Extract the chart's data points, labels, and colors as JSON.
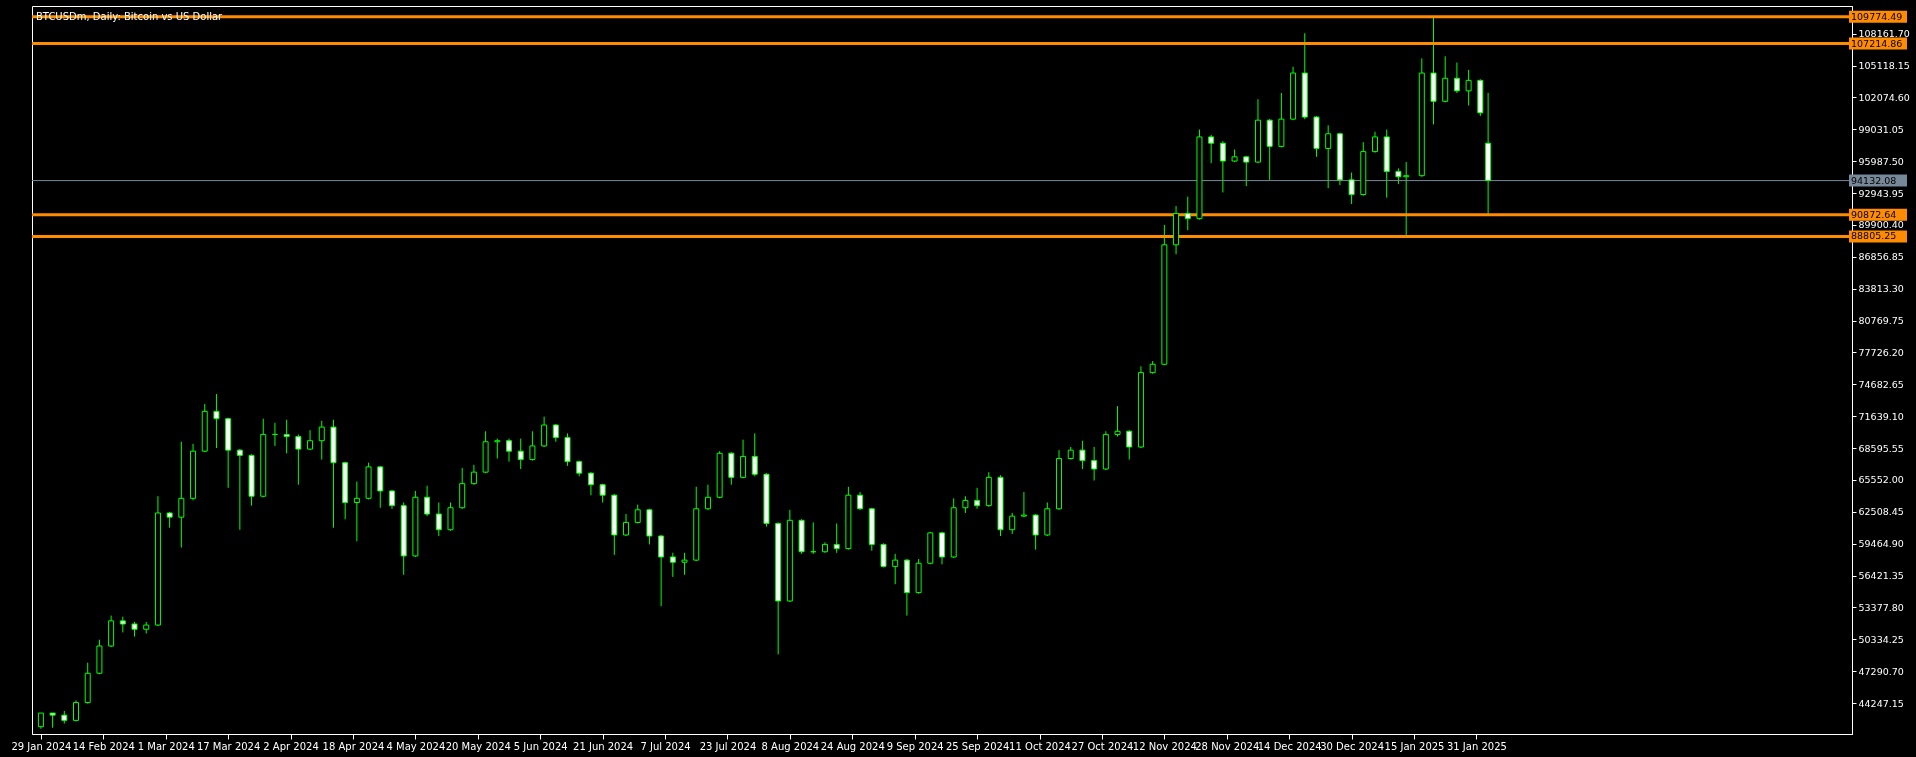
{
  "chart_data": {
    "type": "candlestick",
    "title": "BTCUSDm, Daily:  Bitcoin vs US Dollar",
    "xlim": [
      "2024-01-28",
      "2025-05-06"
    ],
    "xticks": [
      {
        "value": "2024-01-29",
        "label": "29 Jan 2024"
      },
      {
        "value": "2024-02-14",
        "label": "14 Feb 2024"
      },
      {
        "value": "2024-03-01",
        "label": "1 Mar 2024"
      },
      {
        "value": "2024-03-17",
        "label": "17 Mar 2024"
      },
      {
        "value": "2024-04-02",
        "label": "2 Apr 2024"
      },
      {
        "value": "2024-04-18",
        "label": "18 Apr 2024"
      },
      {
        "value": "2024-05-04",
        "label": "4 May 2024"
      },
      {
        "value": "2024-05-20",
        "label": "20 May 2024"
      },
      {
        "value": "2024-06-05",
        "label": "5 Jun 2024"
      },
      {
        "value": "2024-06-21",
        "label": "21 Jun 2024"
      },
      {
        "value": "2024-07-07",
        "label": "7 Jul 2024"
      },
      {
        "value": "2024-07-23",
        "label": "23 Jul 2024"
      },
      {
        "value": "2024-08-08",
        "label": "8 Aug 2024"
      },
      {
        "value": "2024-08-24",
        "label": "24 Aug 2024"
      },
      {
        "value": "2024-09-09",
        "label": "9 Sep 2024"
      },
      {
        "value": "2024-09-25",
        "label": "25 Sep 2024"
      },
      {
        "value": "2024-10-11",
        "label": "11 Oct 2024"
      },
      {
        "value": "2024-10-27",
        "label": "27 Oct 2024"
      },
      {
        "value": "2024-11-12",
        "label": "12 Nov 2024"
      },
      {
        "value": "2024-11-28",
        "label": "28 Nov 2024"
      },
      {
        "value": "2024-12-14",
        "label": "14 Dec 2024"
      },
      {
        "value": "2024-12-30",
        "label": "30 Dec 2024"
      },
      {
        "value": "2025-01-15",
        "label": "15 Jan 2025"
      },
      {
        "value": "2025-01-31",
        "label": "31 Jan 2025"
      }
    ],
    "ylim": [
      41300,
      110800
    ],
    "yticks": [
      {
        "value": 44247.15,
        "label": "44247.15"
      },
      {
        "value": 47290.7,
        "label": "47290.70"
      },
      {
        "value": 50334.25,
        "label": "50334.25"
      },
      {
        "value": 53377.8,
        "label": "53377.80"
      },
      {
        "value": 56421.35,
        "label": "56421.35"
      },
      {
        "value": 59464.9,
        "label": "59464.90"
      },
      {
        "value": 62508.45,
        "label": "62508.45"
      },
      {
        "value": 65552,
        "label": "65552.00"
      },
      {
        "value": 68595.55,
        "label": "68595.55"
      },
      {
        "value": 71639.1,
        "label": "71639.10"
      },
      {
        "value": 74682.65,
        "label": "74682.65"
      },
      {
        "value": 77726.2,
        "label": "77726.20"
      },
      {
        "value": 80769.75,
        "label": "80769.75"
      },
      {
        "value": 83813.3,
        "label": "83813.30"
      },
      {
        "value": 86856.85,
        "label": "86856.85"
      },
      {
        "value": 89900.4,
        "label": "89900.40"
      },
      {
        "value": 92943.95,
        "label": "92943.95"
      },
      {
        "value": 95987.5,
        "label": "95987.50"
      },
      {
        "value": 99031.05,
        "label": "99031.05"
      },
      {
        "value": 102074.6,
        "label": "102074.60"
      },
      {
        "value": 105118.15,
        "label": "105118.15"
      },
      {
        "value": 108161.7,
        "label": "108161.70"
      }
    ],
    "ref_lines": [
      {
        "axis": "y",
        "value": 109774.49,
        "label": "109774.49",
        "color": "#ff8c00"
      },
      {
        "axis": "y",
        "value": 107214.86,
        "label": "107214.86",
        "color": "#ff8c00"
      },
      {
        "axis": "y",
        "value": 94132.08,
        "label": "94132.08",
        "color": "#778899"
      },
      {
        "axis": "y",
        "value": 90872.64,
        "label": "90872.64",
        "color": "#ff8c00"
      },
      {
        "axis": "y",
        "value": 88805.25,
        "label": "88805.25",
        "color": "#ff8c00"
      }
    ],
    "series": [
      {
        "color": "#00ff00",
        "x": [
          "2024-01-29",
          "2024-02-01",
          "2024-02-04",
          "2024-02-07",
          "2024-02-10",
          "2024-02-13",
          "2024-02-16",
          "2024-02-19",
          "2024-02-22",
          "2024-02-25",
          "2024-02-28",
          "2024-03-02",
          "2024-03-05",
          "2024-03-08",
          "2024-03-11",
          "2024-03-14",
          "2024-03-17",
          "2024-03-20",
          "2024-03-23",
          "2024-03-26",
          "2024-03-29",
          "2024-04-01",
          "2024-04-04",
          "2024-04-07",
          "2024-04-10",
          "2024-04-13",
          "2024-04-16",
          "2024-04-19",
          "2024-04-22",
          "2024-04-25",
          "2024-04-28",
          "2024-05-01",
          "2024-05-04",
          "2024-05-07",
          "2024-05-10",
          "2024-05-13",
          "2024-05-16",
          "2024-05-19",
          "2024-05-22",
          "2024-05-25",
          "2024-05-28",
          "2024-05-31",
          "2024-06-03",
          "2024-06-06",
          "2024-06-09",
          "2024-06-12",
          "2024-06-15",
          "2024-06-18",
          "2024-06-21",
          "2024-06-24",
          "2024-06-27",
          "2024-06-30",
          "2024-07-03",
          "2024-07-06",
          "2024-07-09",
          "2024-07-12",
          "2024-07-15",
          "2024-07-18",
          "2024-07-21",
          "2024-07-24",
          "2024-07-27",
          "2024-07-30",
          "2024-08-02",
          "2024-08-05",
          "2024-08-08",
          "2024-08-11",
          "2024-08-14",
          "2024-08-17",
          "2024-08-20",
          "2024-08-23",
          "2024-08-26",
          "2024-08-29",
          "2024-09-01",
          "2024-09-04",
          "2024-09-07",
          "2024-09-10",
          "2024-09-13",
          "2024-09-16",
          "2024-09-19",
          "2024-09-22",
          "2024-09-25",
          "2024-09-28",
          "2024-10-01",
          "2024-10-04",
          "2024-10-07",
          "2024-10-10",
          "2024-10-13",
          "2024-10-16",
          "2024-10-19",
          "2024-10-22",
          "2024-10-25",
          "2024-10-28",
          "2024-10-31",
          "2024-11-03",
          "2024-11-06",
          "2024-11-09",
          "2024-11-12",
          "2024-11-15",
          "2024-11-18",
          "2024-11-21",
          "2024-11-24",
          "2024-11-27",
          "2024-11-30",
          "2024-12-03",
          "2024-12-06",
          "2024-12-09",
          "2024-12-12",
          "2024-12-15",
          "2024-12-18",
          "2024-12-21",
          "2024-12-24",
          "2024-12-27",
          "2024-12-30",
          "2025-01-02",
          "2025-01-05",
          "2025-01-08",
          "2025-01-11",
          "2025-01-13",
          "2025-01-17",
          "2025-01-20",
          "2025-01-23",
          "2025-01-26",
          "2025-01-29",
          "2025-02-01",
          "2025-02-03"
        ],
        "ohlc": [
          [
            42000,
            43300,
            41800,
            43300
          ],
          [
            43300,
            43300,
            41900,
            43100
          ],
          [
            43100,
            43500,
            42300,
            42600
          ],
          [
            42600,
            44500,
            42500,
            44300
          ],
          [
            44300,
            48100,
            44200,
            47100
          ],
          [
            47100,
            50300,
            47000,
            49700
          ],
          [
            49700,
            52600,
            49600,
            52100
          ],
          [
            52100,
            52500,
            51000,
            51800
          ],
          [
            51800,
            52000,
            50600,
            51300
          ],
          [
            51300,
            52000,
            50900,
            51700
          ],
          [
            51700,
            64000,
            51600,
            62400
          ],
          [
            62400,
            62500,
            61000,
            62000
          ],
          [
            62000,
            69200,
            59100,
            63800
          ],
          [
            63800,
            69000,
            63600,
            68300
          ],
          [
            68300,
            72800,
            68200,
            72100
          ],
          [
            72100,
            73750,
            68600,
            71400
          ],
          [
            71400,
            71500,
            64800,
            68400
          ],
          [
            68400,
            68500,
            60800,
            67900
          ],
          [
            67900,
            68000,
            63100,
            64000
          ],
          [
            64000,
            71400,
            63900,
            69900
          ],
          [
            69900,
            71000,
            68800,
            69900
          ],
          [
            69900,
            71300,
            68100,
            69700
          ],
          [
            69700,
            69900,
            65100,
            68500
          ],
          [
            68500,
            70300,
            68400,
            69300
          ],
          [
            69300,
            71200,
            67500,
            70600
          ],
          [
            70600,
            71300,
            61000,
            67200
          ],
          [
            67200,
            67300,
            61800,
            63400
          ],
          [
            63400,
            65400,
            59700,
            63800
          ],
          [
            63800,
            67200,
            63700,
            66800
          ],
          [
            66800,
            66900,
            62900,
            64500
          ],
          [
            64500,
            64600,
            62800,
            63100
          ],
          [
            63100,
            63400,
            56500,
            58300
          ],
          [
            58300,
            64500,
            58200,
            63900
          ],
          [
            63900,
            65000,
            62100,
            62300
          ],
          [
            62300,
            63400,
            60200,
            60800
          ],
          [
            60800,
            63400,
            60700,
            62900
          ],
          [
            62900,
            66700,
            62800,
            65200
          ],
          [
            65200,
            67000,
            65100,
            66300
          ],
          [
            66300,
            70200,
            66200,
            69200
          ],
          [
            69200,
            69500,
            67600,
            69300
          ],
          [
            69300,
            69500,
            67300,
            68300
          ],
          [
            68300,
            69500,
            66600,
            67500
          ],
          [
            67500,
            70200,
            67400,
            68800
          ],
          [
            68800,
            71600,
            68700,
            70800
          ],
          [
            70800,
            70900,
            69200,
            69600
          ],
          [
            69600,
            70000,
            66900,
            67300
          ],
          [
            67300,
            67400,
            65900,
            66200
          ],
          [
            66200,
            66300,
            64100,
            65100
          ],
          [
            65100,
            65200,
            63400,
            64100
          ],
          [
            64100,
            64200,
            58400,
            60300
          ],
          [
            60300,
            62300,
            60200,
            61500
          ],
          [
            61500,
            63200,
            61400,
            62700
          ],
          [
            62700,
            62800,
            59400,
            60200
          ],
          [
            60200,
            60300,
            53500,
            58200
          ],
          [
            58200,
            58600,
            56300,
            57700
          ],
          [
            57700,
            58600,
            56500,
            57900
          ],
          [
            57900,
            64900,
            57800,
            62800
          ],
          [
            62800,
            65100,
            62700,
            63900
          ],
          [
            63900,
            68300,
            63800,
            68100
          ],
          [
            68100,
            68200,
            65100,
            65800
          ],
          [
            65800,
            69400,
            65700,
            67800
          ],
          [
            67800,
            70000,
            65900,
            66100
          ],
          [
            66100,
            66200,
            61100,
            61400
          ],
          [
            61400,
            61500,
            48900,
            54000
          ],
          [
            54000,
            62700,
            53900,
            61700
          ],
          [
            61700,
            61800,
            58500,
            58700
          ],
          [
            58700,
            61500,
            58500,
            58700
          ],
          [
            58700,
            59600,
            58600,
            59400
          ],
          [
            59400,
            61400,
            58600,
            59000
          ],
          [
            59000,
            64900,
            58900,
            64100
          ],
          [
            64100,
            64400,
            62700,
            62800
          ],
          [
            62800,
            62900,
            58800,
            59400
          ],
          [
            59400,
            59500,
            57200,
            57300
          ],
          [
            57300,
            58500,
            55600,
            57900
          ],
          [
            57900,
            58000,
            52600,
            54800
          ],
          [
            54800,
            58000,
            54700,
            57600
          ],
          [
            57600,
            60600,
            57500,
            60500
          ],
          [
            60500,
            60600,
            57500,
            58200
          ],
          [
            58200,
            63800,
            58100,
            62900
          ],
          [
            62900,
            64000,
            62400,
            63600
          ],
          [
            63600,
            64800,
            62800,
            63100
          ],
          [
            63100,
            66300,
            63000,
            65800
          ],
          [
            65800,
            66000,
            60200,
            60800
          ],
          [
            60800,
            62400,
            60400,
            62100
          ],
          [
            62100,
            64400,
            62000,
            62200
          ],
          [
            62200,
            62300,
            58900,
            60300
          ],
          [
            60300,
            63400,
            60200,
            62800
          ],
          [
            62800,
            68400,
            62700,
            67600
          ],
          [
            67600,
            68700,
            67500,
            68400
          ],
          [
            68400,
            69300,
            66600,
            67400
          ],
          [
            67400,
            68700,
            65500,
            66600
          ],
          [
            66600,
            70200,
            66500,
            69900
          ],
          [
            69900,
            72600,
            69700,
            70200
          ],
          [
            70200,
            70300,
            67500,
            68700
          ],
          [
            68700,
            76400,
            68600,
            75800
          ],
          [
            75800,
            76900,
            75700,
            76600
          ],
          [
            76600,
            89900,
            76500,
            88000
          ],
          [
            88000,
            91700,
            87100,
            91000
          ],
          [
            91000,
            92600,
            89400,
            90500
          ],
          [
            90500,
            99000,
            90400,
            98300
          ],
          [
            98300,
            98500,
            95800,
            97700
          ],
          [
            97700,
            97900,
            93000,
            96000
          ],
          [
            96000,
            97100,
            95900,
            96400
          ],
          [
            96400,
            96500,
            93600,
            95900
          ],
          [
            95900,
            101900,
            95800,
            99900
          ],
          [
            99900,
            100000,
            94200,
            97400
          ],
          [
            97400,
            102500,
            97300,
            100000
          ],
          [
            100000,
            105000,
            99900,
            104400
          ],
          [
            104400,
            108200,
            100000,
            100200
          ],
          [
            100200,
            100300,
            96400,
            97200
          ],
          [
            97200,
            99400,
            93400,
            98600
          ],
          [
            98600,
            98700,
            93700,
            94200
          ],
          [
            94200,
            94900,
            91900,
            92800
          ],
          [
            92800,
            97800,
            92700,
            96900
          ],
          [
            96900,
            98800,
            96800,
            98300
          ],
          [
            98300,
            99000,
            92500,
            95000
          ],
          [
            95000,
            95300,
            93800,
            94500
          ],
          [
            94500,
            95900,
            88805,
            94600
          ],
          [
            94600,
            105800,
            94500,
            104400
          ],
          [
            104400,
            109774,
            99500,
            101700
          ],
          [
            101700,
            106000,
            101600,
            103900
          ],
          [
            103900,
            105400,
            102500,
            102700
          ],
          [
            102700,
            104700,
            101300,
            103700
          ],
          [
            103700,
            103800,
            100300,
            100600
          ],
          [
            97700,
            102500,
            90872,
            94132.08
          ]
        ]
      }
    ]
  }
}
